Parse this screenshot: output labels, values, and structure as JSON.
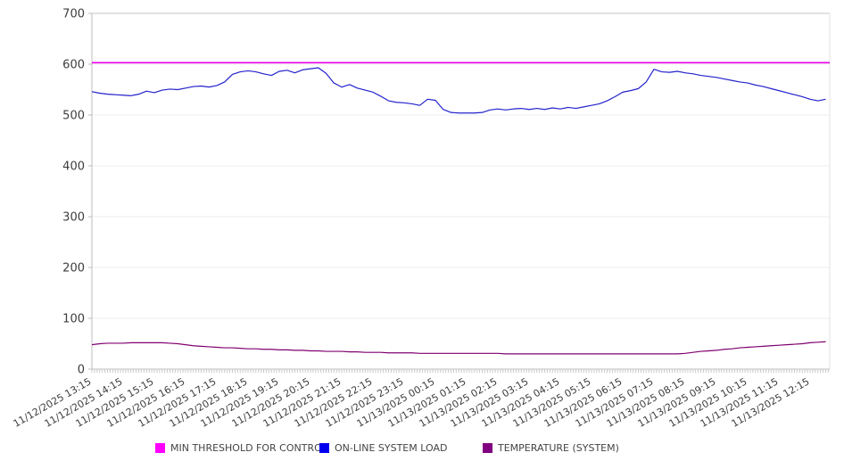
{
  "chart_data": {
    "type": "line",
    "title": "",
    "xlabel": "",
    "ylabel": "",
    "ylim": [
      0,
      700
    ],
    "y_ticks": [
      0,
      100,
      200,
      300,
      400,
      500,
      600,
      700
    ],
    "grid": "horizontal",
    "x_interval_minutes": 15,
    "x_tick_labels": [
      "11/12/2025 13:15",
      "11/12/2025 14:15",
      "11/12/2025 15:15",
      "11/12/2025 16:15",
      "11/12/2025 17:15",
      "11/12/2025 18:15",
      "11/12/2025 19:15",
      "11/12/2025 20:15",
      "11/12/2025 21:15",
      "11/12/2025 22:15",
      "11/12/2025 23:15",
      "11/13/2025 00:15",
      "11/13/2025 01:15",
      "11/13/2025 02:15",
      "11/13/2025 03:15",
      "11/13/2025 04:15",
      "11/13/2025 05:15",
      "11/13/2025 06:15",
      "11/13/2025 07:15",
      "11/13/2025 08:15",
      "11/13/2025 09:15",
      "11/13/2025 10:15",
      "11/13/2025 11:15",
      "11/13/2025 12:15"
    ],
    "series": [
      {
        "name": "MIN THRESHOLD FOR CONTROL",
        "kind": "constant",
        "value": 603,
        "line_color": "#e800e8",
        "legend_color": "#ff00ff"
      },
      {
        "name": "ON-LINE SYSTEM LOAD",
        "kind": "line",
        "line_color": "#2222cc",
        "legend_color": "#0000ee",
        "values": [
          546,
          543,
          541,
          540,
          539,
          538,
          541,
          547,
          544,
          549,
          551,
          550,
          553,
          556,
          557,
          555,
          558,
          565,
          580,
          585,
          587,
          585,
          581,
          578,
          586,
          588,
          583,
          589,
          591,
          593,
          582,
          563,
          555,
          560,
          553,
          549,
          545,
          537,
          528,
          525,
          524,
          522,
          519,
          531,
          529,
          511,
          505,
          504,
          504,
          504,
          505,
          510,
          512,
          510,
          512,
          513,
          511,
          513,
          511,
          514,
          512,
          515,
          513,
          516,
          519,
          522,
          528,
          536,
          545,
          548,
          552,
          565,
          590,
          585,
          584,
          586,
          583,
          581,
          578,
          576,
          574,
          571,
          568,
          565,
          563,
          559,
          556,
          552,
          548,
          544,
          540,
          536,
          531,
          528,
          531
        ]
      },
      {
        "name": "TEMPERATURE (SYSTEM)",
        "kind": "line",
        "line_color": "#800070",
        "legend_color": "#800080",
        "values": [
          48,
          50,
          51,
          51,
          51,
          52,
          52,
          52,
          52,
          52,
          51,
          50,
          48,
          46,
          45,
          44,
          43,
          42,
          42,
          41,
          40,
          40,
          39,
          39,
          38,
          38,
          37,
          37,
          36,
          36,
          35,
          35,
          35,
          34,
          34,
          33,
          33,
          33,
          32,
          32,
          32,
          32,
          31,
          31,
          31,
          31,
          31,
          31,
          31,
          31,
          31,
          31,
          31,
          30,
          30,
          30,
          30,
          30,
          30,
          30,
          30,
          30,
          30,
          30,
          30,
          30,
          30,
          30,
          30,
          30,
          30,
          30,
          30,
          30,
          30,
          30,
          31,
          33,
          35,
          36,
          37,
          39,
          40,
          42,
          43,
          44,
          45,
          46,
          47,
          48,
          49,
          50,
          52,
          53,
          54
        ]
      }
    ],
    "legend": [
      {
        "label": "MIN THRESHOLD FOR CONTROL",
        "color": "#ff00ff"
      },
      {
        "label": "ON-LINE SYSTEM LOAD",
        "color": "#0000ee"
      },
      {
        "label": "TEMPERATURE (SYSTEM)",
        "color": "#800080"
      }
    ]
  }
}
